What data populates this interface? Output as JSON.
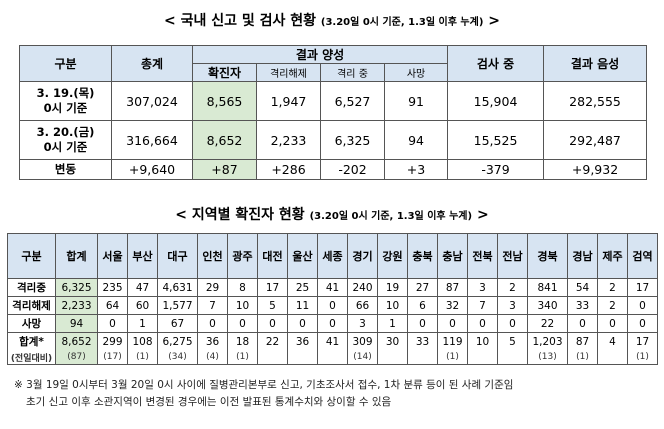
{
  "title1": {
    "main": "< 국내 신고 및 검사 현황",
    "sub": "(3.20일 0시 기준, 1.3일 이후 누계)",
    "end": ">"
  },
  "table1": {
    "headers": {
      "gubun": "구분",
      "total": "총계",
      "positive": "결과 양성",
      "confirmed": "확진자",
      "released": "격리해제",
      "isolating": "격리 중",
      "deaths": "사망",
      "testing": "검사 중",
      "negative": "결과 음성"
    },
    "rows": [
      {
        "label1": "3. 19.(목)",
        "label2": "0시 기준",
        "total": "307,024",
        "confirmed": "8,565",
        "released": "1,947",
        "isolating": "6,527",
        "deaths": "91",
        "testing": "15,904",
        "negative": "282,555"
      },
      {
        "label1": "3. 20.(금)",
        "label2": "0시 기준",
        "total": "316,664",
        "confirmed": "8,652",
        "released": "2,233",
        "isolating": "6,325",
        "deaths": "94",
        "testing": "15,525",
        "negative": "292,487"
      }
    ],
    "delta": {
      "label": "변동",
      "total": "+9,640",
      "confirmed": "+87",
      "released": "+286",
      "isolating": "-202",
      "deaths": "+3",
      "testing": "-379",
      "negative": "+9,932"
    }
  },
  "title2": {
    "main": "< 지역별 확진자 현황",
    "sub": "(3.20일 0시 기준, 1.3일 이후 누계)",
    "end": ">"
  },
  "table2": {
    "gubun": "구분",
    "total": "합계",
    "regions": [
      "서울",
      "부산",
      "대구",
      "인천",
      "광주",
      "대전",
      "울산",
      "세종",
      "경기",
      "강원",
      "충북",
      "충남",
      "전북",
      "전남",
      "경북",
      "경남",
      "제주",
      "검역"
    ],
    "rows": [
      {
        "label": "격리중",
        "total": "6,325",
        "values": [
          "235",
          "47",
          "4,631",
          "29",
          "8",
          "17",
          "25",
          "41",
          "240",
          "19",
          "27",
          "87",
          "3",
          "2",
          "841",
          "54",
          "2",
          "17"
        ]
      },
      {
        "label": "격리해제",
        "total": "2,233",
        "values": [
          "64",
          "60",
          "1,577",
          "7",
          "10",
          "5",
          "11",
          "0",
          "66",
          "10",
          "6",
          "32",
          "7",
          "3",
          "340",
          "33",
          "2",
          "0"
        ]
      },
      {
        "label": "사망",
        "total": "94",
        "values": [
          "0",
          "1",
          "67",
          "0",
          "0",
          "0",
          "0",
          "0",
          "3",
          "1",
          "0",
          "0",
          "0",
          "0",
          "22",
          "0",
          "0",
          "0"
        ]
      },
      {
        "label": "합계*",
        "total": "8,652",
        "values": [
          "299",
          "108",
          "6,275",
          "36",
          "18",
          "22",
          "36",
          "41",
          "309",
          "30",
          "33",
          "119",
          "10",
          "5",
          "1,203",
          "87",
          "4",
          "17"
        ]
      }
    ],
    "prev_label": "(전일대비)",
    "prev_total": "(87)",
    "prev_values": [
      "(17)",
      "(1)",
      "(34)",
      "(4)",
      "(1)",
      "",
      "",
      "",
      "(14)",
      "",
      "",
      "(1)",
      "",
      "",
      "(13)",
      "(1)",
      "",
      "(1)"
    ]
  },
  "notes": [
    "※ 3월 19일 0시부터 3월 20일 0시 사이에 질병관리본부로 신고, 기초조사서 접수, 1차 분류 등이 된 사례 기준임",
    "초기 신고 이후 소관지역이 변경된 경우에는 이전 발표된 통계수치와 상이할 수 있음"
  ]
}
